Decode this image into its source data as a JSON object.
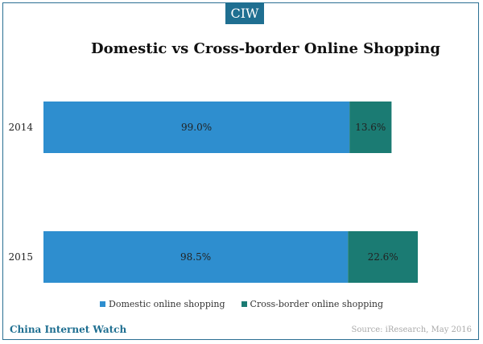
{
  "badge": "CIW",
  "footer": {
    "brand": "China Internet Watch",
    "source": "Source: iResearch, May 2016"
  },
  "colors": {
    "domestic": "#2e8ecf",
    "cross_border": "#1b7b73",
    "brand": "#1f6f91"
  },
  "chart_data": {
    "type": "bar",
    "orientation": "horizontal",
    "stacked": true,
    "title": "Domestic vs Cross-border Online Shopping",
    "categories": [
      "2014",
      "2015"
    ],
    "series": [
      {
        "name": "Domestic online shopping",
        "values": [
          99.0,
          98.5
        ],
        "labels": [
          "99.0%",
          "98.5%"
        ]
      },
      {
        "name": "Cross-border online shopping",
        "values": [
          13.6,
          22.6
        ],
        "labels": [
          "13.6%",
          "22.6%"
        ]
      }
    ],
    "xlabel": "",
    "ylabel": "",
    "grid": false,
    "legend": "bottom"
  }
}
